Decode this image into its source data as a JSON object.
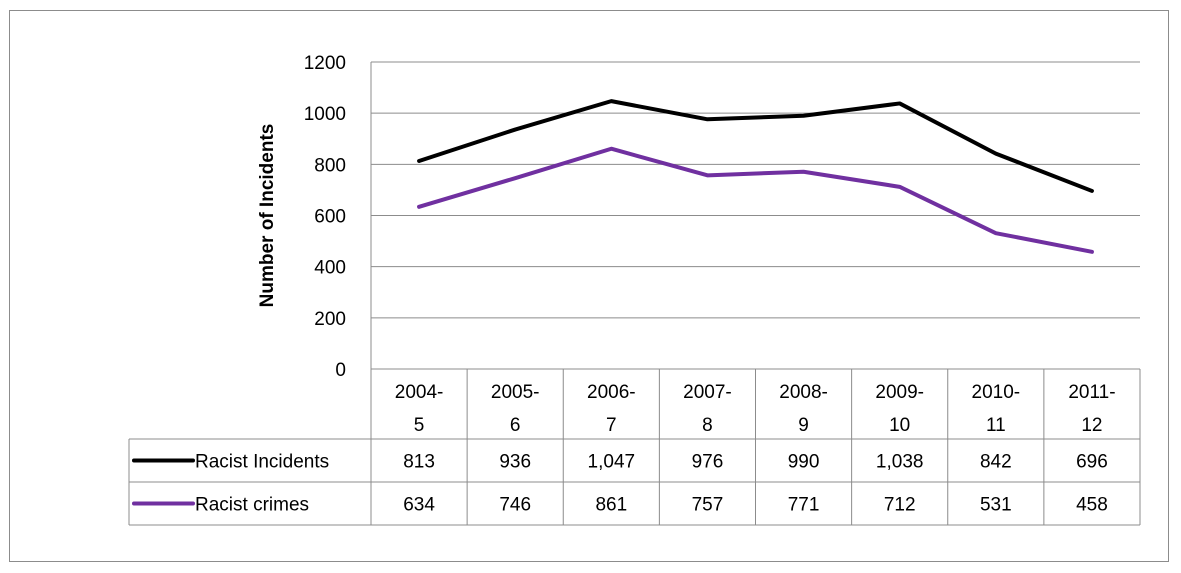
{
  "chart_data": {
    "type": "line",
    "title": "",
    "xlabel": "",
    "ylabel": "Number  of Incidents",
    "ylim": [
      0,
      1200
    ],
    "yticks": [
      "0",
      "200",
      "400",
      "600",
      "800",
      "1000",
      "1200"
    ],
    "grid": "horizontal",
    "legend": "data-table",
    "categories": [
      [
        "2004-",
        "5"
      ],
      [
        "2005-",
        "6"
      ],
      [
        "2006-",
        "7"
      ],
      [
        "2007-",
        "8"
      ],
      [
        "2008-",
        "9"
      ],
      [
        "2009-",
        "10"
      ],
      [
        "2010-",
        "11"
      ],
      [
        "2011-",
        "12"
      ]
    ],
    "series": [
      {
        "name": "Racist Incidents",
        "color": "#000000",
        "values": [
          813,
          936,
          1047,
          976,
          990,
          1038,
          842,
          696
        ],
        "labels": [
          "813",
          "936",
          "1,047",
          "976",
          "990",
          "1,038",
          "842",
          "696"
        ]
      },
      {
        "name": "Racist crimes",
        "color": "#7030a0",
        "values": [
          634,
          746,
          861,
          757,
          771,
          712,
          531,
          458
        ],
        "labels": [
          "634",
          "746",
          "861",
          "757",
          "771",
          "712",
          "531",
          "458"
        ]
      }
    ]
  }
}
